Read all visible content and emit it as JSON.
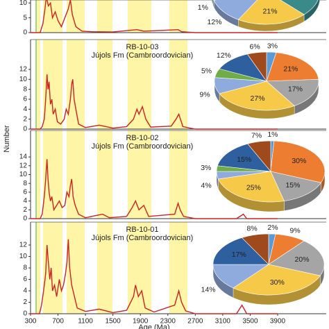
{
  "chart_data": [
    {
      "type": "line",
      "color": "#cc2222",
      "xlim": [
        300,
        3900
      ],
      "ylim": [
        0,
        11
      ],
      "yticks": [
        0,
        5,
        10
      ],
      "x": [
        300,
        440,
        480,
        510,
        530,
        560,
        590,
        620,
        660,
        700,
        750,
        800,
        850,
        880,
        910,
        960,
        1050,
        1200,
        1500,
        1850,
        1950,
        2450,
        2500,
        2700,
        3900
      ],
      "values": [
        0,
        0,
        3,
        8,
        12,
        9,
        10,
        5,
        7,
        4,
        2,
        5,
        8,
        11,
        6,
        2,
        0.5,
        0.3,
        0.2,
        1,
        0.5,
        1,
        0.3,
        0,
        0
      ]
    },
    {
      "type": "pie",
      "values": [
        21,
        12,
        1
      ],
      "value_labels": [
        "21%",
        "12%",
        "1%"
      ],
      "colors": [
        "#f7c948",
        "#8faadc",
        "#70ad47"
      ]
    },
    {
      "type": "line",
      "title": "RB-10-03",
      "subtitle": "Jújols Fm (Cambroordovician)",
      "color": "#cc2222",
      "xlim": [
        300,
        3900
      ],
      "ylim": [
        0,
        18
      ],
      "yticks": [
        0,
        2,
        4,
        6,
        8,
        10,
        12
      ],
      "x": [
        300,
        440,
        470,
        500,
        520,
        540,
        555,
        570,
        590,
        610,
        630,
        660,
        690,
        740,
        790,
        820,
        850,
        880,
        900,
        915,
        935,
        960,
        1000,
        1100,
        1300,
        1500,
        1700,
        1800,
        1850,
        1880,
        1930,
        1980,
        2050,
        2350,
        2420,
        2460,
        2520,
        2700,
        3900
      ],
      "values": [
        0,
        0,
        0.5,
        2,
        6,
        11,
        8,
        9.5,
        5,
        6,
        3,
        4,
        1.5,
        1,
        2,
        4,
        3,
        6,
        9,
        10,
        6,
        4,
        1,
        0.3,
        0.8,
        0.2,
        0.5,
        2,
        4,
        3,
        4.5,
        2,
        0.4,
        0.6,
        2,
        3,
        0.5,
        0,
        0
      ]
    },
    {
      "type": "pie",
      "values": [
        3,
        21,
        17,
        27,
        9,
        5,
        12,
        6
      ],
      "value_labels": [
        "3%",
        "21%",
        "17%",
        "27%",
        "9%",
        "5%",
        "12%",
        "6%"
      ],
      "colors": [
        "#5b9bd5",
        "#ed7d31",
        "#a5a5a5",
        "#f7c948",
        "#8faadc",
        "#70ad47",
        "#2e5f9e",
        "#9e4a1c"
      ]
    },
    {
      "type": "line",
      "title": "RB-10-02",
      "subtitle": "Jújols Fm (Cambroordovician)",
      "ylabel": "Number",
      "color": "#cc2222",
      "xlim": [
        300,
        3900
      ],
      "ylim": [
        0,
        20
      ],
      "yticks": [
        0,
        2,
        4,
        6,
        8,
        10,
        12,
        14
      ],
      "x": [
        300,
        440,
        470,
        500,
        520,
        540,
        555,
        570,
        590,
        610,
        640,
        680,
        720,
        760,
        800,
        830,
        860,
        880,
        900,
        920,
        950,
        1000,
        1100,
        1350,
        1450,
        1700,
        1780,
        1830,
        1880,
        1950,
        2020,
        2400,
        2450,
        2480,
        2530,
        2700,
        3300,
        3400,
        3450,
        3900
      ],
      "values": [
        0,
        0,
        1,
        5,
        9,
        13.5,
        9,
        6,
        4,
        5,
        2,
        3,
        4,
        2.5,
        3,
        6,
        5,
        7.5,
        9,
        5,
        3,
        1,
        0.2,
        1,
        0.2,
        0.5,
        2.5,
        4,
        2,
        3,
        0.5,
        1,
        3.5,
        2,
        0.5,
        0,
        0,
        1,
        0,
        0
      ]
    },
    {
      "type": "pie",
      "values": [
        1,
        30,
        15,
        25,
        4,
        3,
        15,
        7
      ],
      "value_labels": [
        "1%",
        "30%",
        "15%",
        "25%",
        "4%",
        "3%",
        "15%",
        "7%"
      ],
      "colors": [
        "#5b9bd5",
        "#ed7d31",
        "#a5a5a5",
        "#f7c948",
        "#8faadc",
        "#70ad47",
        "#2e5f9e",
        "#9e4a1c"
      ]
    },
    {
      "type": "line",
      "title": "RB-10-01",
      "subtitle": "Jújols Fm (Cambroordovician)",
      "xlabel": "Age (Ma)",
      "color": "#cc2222",
      "xlim": [
        300,
        3900
      ],
      "ylim": [
        0,
        16
      ],
      "yticks": [
        0,
        2,
        4,
        6,
        8,
        10,
        12
      ],
      "xticks": [
        300,
        700,
        1100,
        1500,
        1900,
        2300,
        2700,
        3100,
        3500,
        3900
      ],
      "x": [
        300,
        430,
        460,
        490,
        520,
        540,
        560,
        580,
        600,
        620,
        650,
        680,
        720,
        750,
        780,
        810,
        830,
        850,
        870,
        900,
        940,
        980,
        1100,
        1300,
        1500,
        1700,
        1800,
        1830,
        1870,
        1920,
        1970,
        2100,
        2400,
        2460,
        2500,
        2560,
        2700,
        3300,
        3380,
        3450,
        3900
      ],
      "values": [
        0,
        0,
        1.5,
        4,
        7,
        12,
        9,
        6,
        8,
        4,
        5,
        3,
        6,
        4,
        5,
        7,
        9,
        13,
        8,
        5,
        3,
        1,
        0.4,
        0.8,
        0.2,
        0.6,
        3,
        5,
        3,
        4,
        1,
        0.3,
        1.5,
        4,
        2,
        0.5,
        0,
        0,
        1.5,
        0,
        0
      ]
    },
    {
      "type": "pie",
      "values": [
        2,
        9,
        20,
        30,
        14,
        17,
        8
      ],
      "value_labels": [
        "2%",
        "9%",
        "20%",
        "30%",
        "14%",
        "17%",
        "8%"
      ],
      "colors": [
        "#5b9bd5",
        "#ed7d31",
        "#a5a5a5",
        "#f7c948",
        "#8faadc",
        "#2e5f9e",
        "#9e4a1c"
      ]
    }
  ]
}
